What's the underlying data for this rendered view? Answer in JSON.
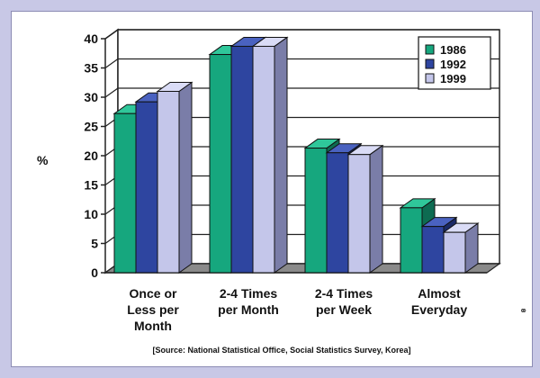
{
  "chart_data": {
    "type": "bar",
    "ylabel": "%",
    "ylim": [
      0,
      40
    ],
    "yticks": [
      0,
      5,
      10,
      15,
      20,
      25,
      30,
      35,
      40
    ],
    "categories": [
      [
        "Once or",
        "Less per",
        "Month"
      ],
      [
        "2-4 Times",
        "per Month"
      ],
      [
        "2-4 Times",
        "per Week"
      ],
      [
        "Almost",
        "Everyday"
      ]
    ],
    "series": [
      {
        "name": "1986",
        "color": "#16a77e",
        "side": "#0d6b51",
        "top": "#2fc79a",
        "values": [
          27.2,
          37.3,
          21.3,
          11.1
        ]
      },
      {
        "name": "1992",
        "color": "#2e45a0",
        "side": "#1b2a66",
        "top": "#4a62c0",
        "values": [
          29.2,
          38.7,
          20.5,
          7.9
        ]
      },
      {
        "name": "1999",
        "color": "#c4c6ea",
        "side": "#7a7da8",
        "top": "#dadcf6",
        "values": [
          31.0,
          38.7,
          20.2,
          6.9
        ]
      }
    ],
    "legend_position": "top-right",
    "grid": true,
    "source": "[Source:  National Statistical Office, Social Statistics Survey, Korea]"
  }
}
